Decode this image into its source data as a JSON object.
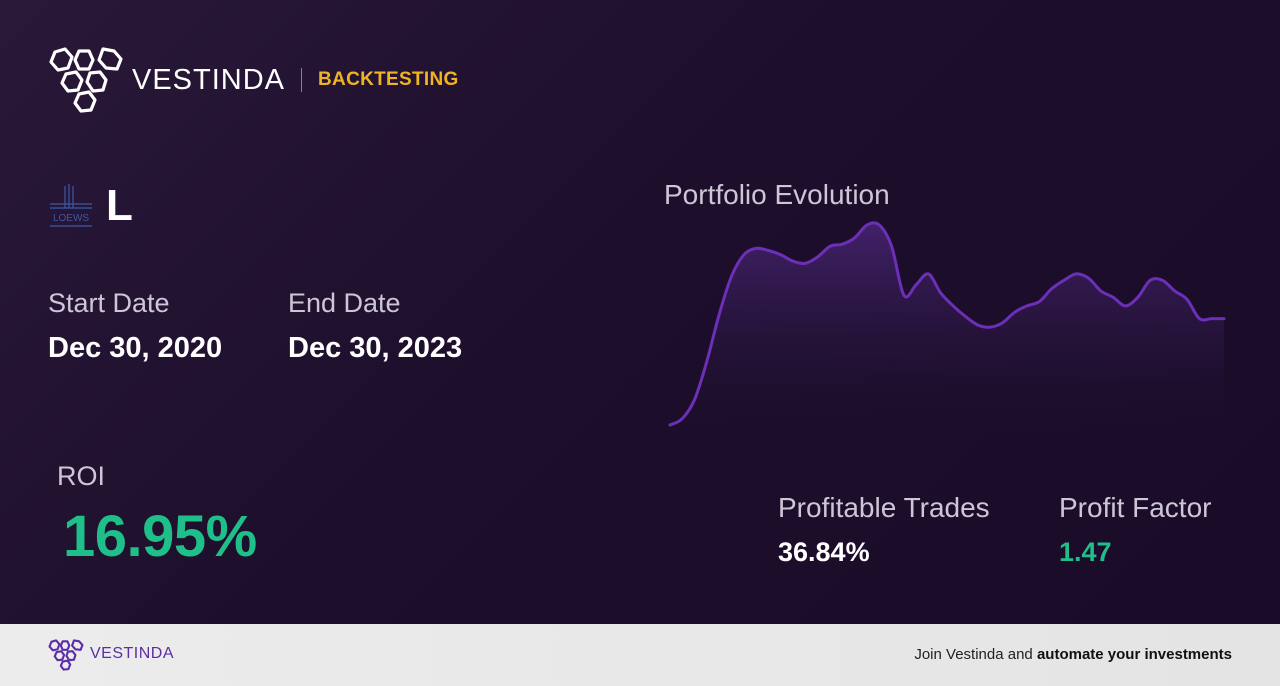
{
  "header": {
    "brand": "VESTINDA",
    "tag": "BACKTESTING",
    "logo_icon": "hexagon-cluster-icon"
  },
  "ticker": {
    "symbol": "L",
    "logo_icon": "loews-logo-icon",
    "logo_text": "LOEWS"
  },
  "dates": {
    "start_label": "Start Date",
    "start_value": "Dec 30, 2020",
    "end_label": "End Date",
    "end_value": "Dec 30, 2023"
  },
  "roi": {
    "label": "ROI",
    "value": "16.95%"
  },
  "chart": {
    "title": "Portfolio Evolution"
  },
  "chart_data": {
    "type": "area",
    "title": "Portfolio Evolution",
    "xlabel": "",
    "ylabel": "",
    "grid": false,
    "values": [
      0,
      3,
      12,
      30,
      52,
      70,
      80,
      83,
      82,
      80,
      77,
      76,
      79,
      84,
      85,
      88,
      94,
      94,
      84,
      61,
      66,
      71,
      62,
      56,
      51,
      47,
      46,
      48,
      53,
      56,
      58,
      64,
      68,
      71,
      69,
      63,
      60,
      56,
      60,
      68,
      68,
      63,
      59,
      50,
      50,
      50
    ]
  },
  "stats": {
    "profitable_label": "Profitable Trades",
    "profitable_value": "36.84%",
    "factor_label": "Profit Factor",
    "factor_value": "1.47"
  },
  "colors": {
    "accent": "#f0b323",
    "positive": "#1fbf8a",
    "chart_line": "#6b2fb8",
    "footer_brand": "#5b2ea6"
  },
  "footer": {
    "brand": "VESTINDA",
    "cta_prefix": "Join Vestinda and ",
    "cta_bold": "automate your investments"
  }
}
